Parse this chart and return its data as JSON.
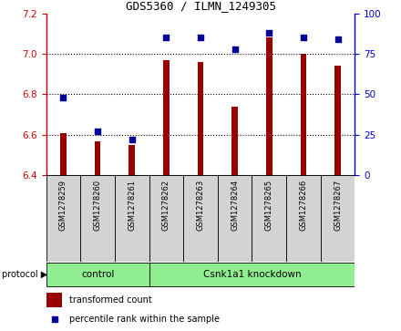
{
  "title": "GDS5360 / ILMN_1249305",
  "samples": [
    "GSM1278259",
    "GSM1278260",
    "GSM1278261",
    "GSM1278262",
    "GSM1278263",
    "GSM1278264",
    "GSM1278265",
    "GSM1278266",
    "GSM1278267"
  ],
  "bar_values": [
    6.61,
    6.57,
    6.55,
    6.97,
    6.96,
    6.74,
    7.08,
    7.0,
    6.94
  ],
  "percentile_values": [
    48,
    27,
    22,
    85,
    85,
    78,
    88,
    85,
    84
  ],
  "ylim_left": [
    6.4,
    7.2
  ],
  "ylim_right": [
    0,
    100
  ],
  "yticks_left": [
    6.4,
    6.6,
    6.8,
    7.0,
    7.2
  ],
  "yticks_right": [
    0,
    25,
    50,
    75,
    100
  ],
  "bar_color": "#990000",
  "dot_color": "#000099",
  "grid_color": "#000000",
  "control_group": [
    0,
    1,
    2
  ],
  "knockdown_group": [
    3,
    4,
    5,
    6,
    7,
    8
  ],
  "control_label": "control",
  "knockdown_label": "Csnk1a1 knockdown",
  "protocol_label": "protocol",
  "legend_bar_label": "transformed count",
  "legend_dot_label": "percentile rank within the sample",
  "group_color": "#90EE90",
  "tick_color_left": "#CC0000",
  "tick_color_right": "#0000CC",
  "label_bg_color": "#D3D3D3",
  "plot_bg_color": "#FFFFFF",
  "fig_bg_color": "#FFFFFF"
}
